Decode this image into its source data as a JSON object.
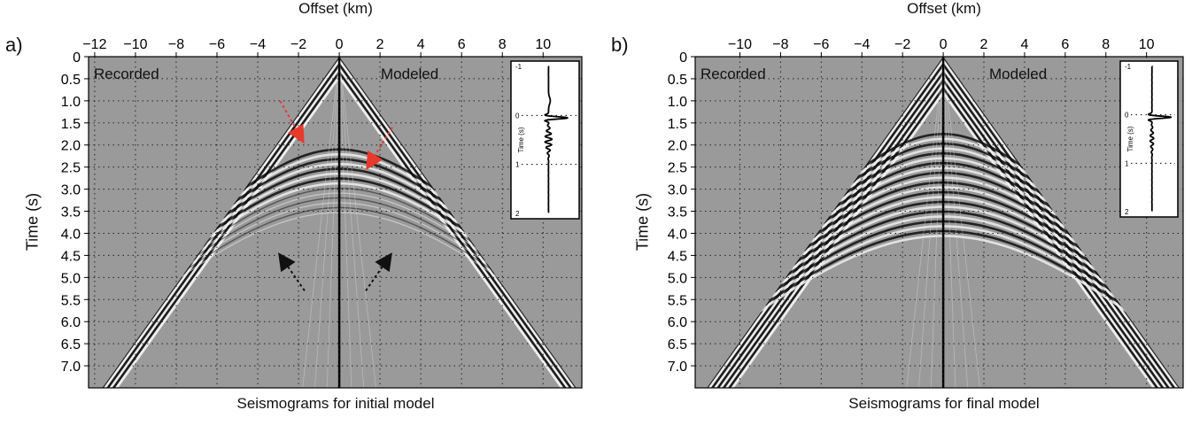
{
  "chart_data": [
    {
      "panel": "a)",
      "type": "heatmap",
      "xlabel": "Offset (km)",
      "ylabel": "Time (s)",
      "caption": "Seismograms for initial model",
      "x_ticks": [
        "−12",
        "−10",
        "−8",
        "−6",
        "−4",
        "−2",
        "0",
        "2",
        "4",
        "6",
        "8",
        "10"
      ],
      "x_tick_values": [
        -12,
        -10,
        -8,
        -6,
        -4,
        -2,
        0,
        2,
        4,
        6,
        8,
        10
      ],
      "y_ticks": [
        "0",
        "0.5",
        "1.0",
        "1.5",
        "2.0",
        "2.5",
        "3.0",
        "3.5",
        "4.0",
        "4.5",
        "5.0",
        "5.5",
        "6.0",
        "6.5",
        "7.0"
      ],
      "y_tick_values": [
        0,
        0.5,
        1.0,
        1.5,
        2.0,
        2.5,
        3.0,
        3.5,
        4.0,
        4.5,
        5.0,
        5.5,
        6.0,
        6.5,
        7.0
      ],
      "xlim": [
        -12.3,
        11.9
      ],
      "ylim": [
        0,
        7.5
      ],
      "grid": true,
      "left_label": "Recorded",
      "right_label": "Modeled",
      "inset": {
        "ylabel": "Time (s)",
        "y_ticks": [
          "-1",
          "0",
          "1",
          "2"
        ],
        "y_tick_values": [
          -1,
          0,
          1,
          2
        ]
      },
      "arrows": [
        {
          "color": "#e8392b",
          "from": [
            -2.9,
            1.0
          ],
          "to": [
            -1.8,
            1.9
          ]
        },
        {
          "color": "#e8392b",
          "from": [
            2.6,
            1.6
          ],
          "to": [
            1.4,
            2.5
          ]
        },
        {
          "color": "#111111",
          "from": [
            -1.7,
            5.3
          ],
          "to": [
            -2.9,
            4.5
          ]
        },
        {
          "color": "#111111",
          "from": [
            1.3,
            5.3
          ],
          "to": [
            2.5,
            4.5
          ]
        }
      ]
    },
    {
      "panel": "b)",
      "type": "heatmap",
      "xlabel": "Offset (km)",
      "ylabel": "Time (s)",
      "caption": "Seismograms for final model",
      "x_ticks": [
        "−10",
        "−8",
        "−6",
        "−4",
        "−2",
        "0",
        "2",
        "4",
        "6",
        "8",
        "10"
      ],
      "x_tick_values": [
        -10,
        -8,
        -6,
        -4,
        -2,
        0,
        2,
        4,
        6,
        8,
        10
      ],
      "y_ticks": [
        "0",
        "0.5",
        "1.0",
        "1.5",
        "2.0",
        "2.5",
        "3.0",
        "3.5",
        "4.0",
        "4.5",
        "5.0",
        "5.5",
        "6.0",
        "6.5",
        "7.0"
      ],
      "y_tick_values": [
        0,
        0.5,
        1.0,
        1.5,
        2.0,
        2.5,
        3.0,
        3.5,
        4.0,
        4.5,
        5.0,
        5.5,
        6.0,
        6.5,
        7.0
      ],
      "xlim": [
        -12.2,
        11.8
      ],
      "ylim": [
        0,
        7.5
      ],
      "grid": true,
      "left_label": "Recorded",
      "right_label": "Modeled",
      "inset": {
        "ylabel": "Time (s)",
        "y_ticks": [
          "-1",
          "0",
          "1",
          "2"
        ],
        "y_tick_values": [
          -1,
          0,
          1,
          2
        ]
      },
      "arrows": []
    }
  ]
}
